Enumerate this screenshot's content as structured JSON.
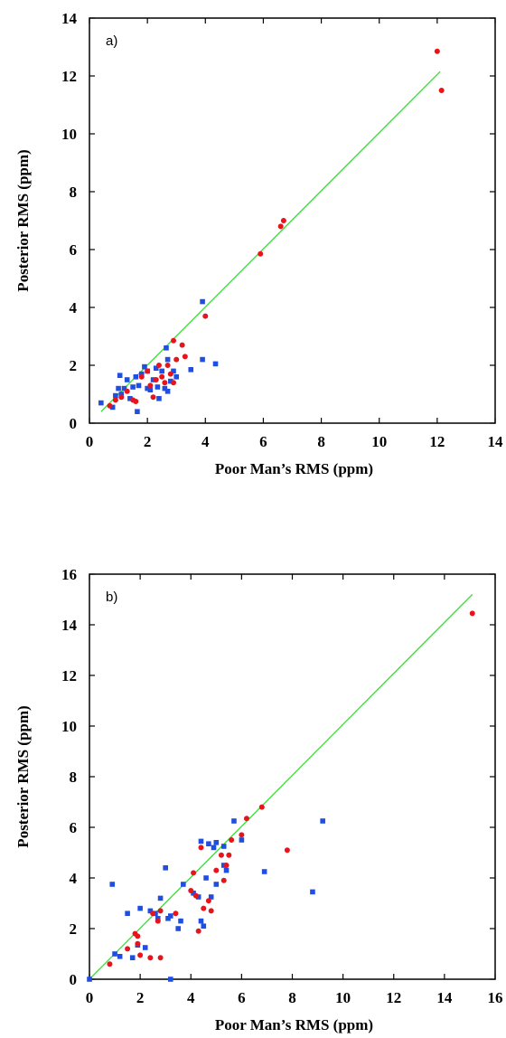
{
  "chart_data": [
    {
      "type": "scatter",
      "panel_label": "a)",
      "xlabel": "Poor Man’s RMS (ppm)",
      "ylabel": "Posterior RMS (ppm)",
      "xlim": [
        0,
        14
      ],
      "ylim": [
        0,
        14
      ],
      "xticks": [
        0,
        2,
        4,
        6,
        8,
        10,
        12,
        14
      ],
      "yticks": [
        0,
        2,
        4,
        6,
        8,
        10,
        12,
        14
      ],
      "grid": false,
      "colors": {
        "red": "#e8141b",
        "blue": "#1f4fe0",
        "line": "#33e033"
      },
      "fit_line": {
        "x": [
          0.4,
          12.1
        ],
        "y": [
          0.4,
          12.15
        ]
      },
      "series": [
        {
          "marker": "circle",
          "color": "#e8141b",
          "points": [
            [
              0.7,
              0.6
            ],
            [
              0.9,
              0.8
            ],
            [
              1.1,
              0.9
            ],
            [
              1.3,
              1.1
            ],
            [
              1.5,
              0.8
            ],
            [
              1.6,
              0.75
            ],
            [
              1.8,
              1.6
            ],
            [
              2.0,
              1.8
            ],
            [
              2.1,
              1.3
            ],
            [
              2.2,
              0.9
            ],
            [
              2.3,
              1.5
            ],
            [
              2.4,
              2.0
            ],
            [
              2.5,
              1.6
            ],
            [
              2.6,
              1.4
            ],
            [
              2.7,
              2.0
            ],
            [
              2.8,
              1.7
            ],
            [
              2.9,
              2.85
            ],
            [
              2.9,
              1.4
            ],
            [
              3.0,
              2.2
            ],
            [
              3.2,
              2.7
            ],
            [
              3.3,
              2.3
            ],
            [
              4.0,
              3.7
            ],
            [
              5.9,
              5.85
            ],
            [
              6.6,
              6.8
            ],
            [
              6.7,
              7.0
            ],
            [
              12.0,
              12.85
            ],
            [
              12.15,
              11.5
            ]
          ]
        },
        {
          "marker": "square",
          "color": "#1f4fe0",
          "points": [
            [
              0.4,
              0.7
            ],
            [
              0.8,
              0.55
            ],
            [
              0.9,
              0.95
            ],
            [
              1.0,
              1.2
            ],
            [
              1.05,
              1.65
            ],
            [
              1.1,
              1.0
            ],
            [
              1.2,
              1.2
            ],
            [
              1.3,
              1.5
            ],
            [
              1.4,
              0.85
            ],
            [
              1.5,
              1.25
            ],
            [
              1.6,
              1.6
            ],
            [
              1.65,
              0.4
            ],
            [
              1.7,
              1.3
            ],
            [
              1.8,
              1.7
            ],
            [
              1.9,
              1.95
            ],
            [
              2.0,
              1.2
            ],
            [
              2.0,
              1.8
            ],
            [
              2.1,
              1.15
            ],
            [
              2.2,
              1.5
            ],
            [
              2.3,
              1.9
            ],
            [
              2.35,
              1.25
            ],
            [
              2.4,
              0.85
            ],
            [
              2.5,
              1.8
            ],
            [
              2.6,
              1.2
            ],
            [
              2.65,
              2.6
            ],
            [
              2.7,
              2.2
            ],
            [
              2.7,
              1.1
            ],
            [
              2.8,
              1.45
            ],
            [
              2.9,
              1.8
            ],
            [
              3.0,
              1.6
            ],
            [
              3.5,
              1.85
            ],
            [
              3.9,
              4.2
            ],
            [
              3.9,
              2.2
            ],
            [
              4.35,
              2.05
            ]
          ]
        }
      ]
    },
    {
      "type": "scatter",
      "panel_label": "b)",
      "xlabel": "Poor Man’s RMS (ppm)",
      "ylabel": "Posterior RMS (ppm)",
      "xlim": [
        0,
        16
      ],
      "ylim": [
        0,
        16
      ],
      "xticks": [
        0,
        2,
        4,
        6,
        8,
        10,
        12,
        14,
        16
      ],
      "yticks": [
        0,
        2,
        4,
        6,
        8,
        10,
        12,
        14,
        16
      ],
      "grid": false,
      "colors": {
        "red": "#e8141b",
        "blue": "#1f4fe0",
        "line": "#33e033"
      },
      "fit_line": {
        "x": [
          0,
          15.1
        ],
        "y": [
          0,
          15.2
        ]
      },
      "series": [
        {
          "marker": "circle",
          "color": "#e8141b",
          "points": [
            [
              0.8,
              0.6
            ],
            [
              1.5,
              1.2
            ],
            [
              1.8,
              1.8
            ],
            [
              1.9,
              1.7
            ],
            [
              1.9,
              1.4
            ],
            [
              2.0,
              0.95
            ],
            [
              2.4,
              0.85
            ],
            [
              2.5,
              2.6
            ],
            [
              2.7,
              2.3
            ],
            [
              2.8,
              2.7
            ],
            [
              2.8,
              0.85
            ],
            [
              3.4,
              2.6
            ],
            [
              4.0,
              3.5
            ],
            [
              4.1,
              4.2
            ],
            [
              4.2,
              3.3
            ],
            [
              4.3,
              1.9
            ],
            [
              4.4,
              5.2
            ],
            [
              4.5,
              2.8
            ],
            [
              4.7,
              3.1
            ],
            [
              4.8,
              2.7
            ],
            [
              5.0,
              4.3
            ],
            [
              5.2,
              4.9
            ],
            [
              5.3,
              3.9
            ],
            [
              5.4,
              4.5
            ],
            [
              5.5,
              4.9
            ],
            [
              5.6,
              5.5
            ],
            [
              6.0,
              5.7
            ],
            [
              6.2,
              6.35
            ],
            [
              6.8,
              6.8
            ],
            [
              7.8,
              5.1
            ],
            [
              15.1,
              14.45
            ]
          ]
        },
        {
          "marker": "square",
          "color": "#1f4fe0",
          "points": [
            [
              0.0,
              0.0
            ],
            [
              0.9,
              3.75
            ],
            [
              1.0,
              1.0
            ],
            [
              1.2,
              0.9
            ],
            [
              1.5,
              2.6
            ],
            [
              1.7,
              0.85
            ],
            [
              1.9,
              1.35
            ],
            [
              2.0,
              2.8
            ],
            [
              2.2,
              1.25
            ],
            [
              2.4,
              2.7
            ],
            [
              2.6,
              2.6
            ],
            [
              2.7,
              2.4
            ],
            [
              2.8,
              3.2
            ],
            [
              3.0,
              4.4
            ],
            [
              3.1,
              2.4
            ],
            [
              3.2,
              0.0
            ],
            [
              3.2,
              2.5
            ],
            [
              3.5,
              2.0
            ],
            [
              3.6,
              2.3
            ],
            [
              3.7,
              3.75
            ],
            [
              4.1,
              3.4
            ],
            [
              4.3,
              3.25
            ],
            [
              4.4,
              5.45
            ],
            [
              4.4,
              2.3
            ],
            [
              4.5,
              2.1
            ],
            [
              4.6,
              4.0
            ],
            [
              4.7,
              5.35
            ],
            [
              4.8,
              3.25
            ],
            [
              4.9,
              5.2
            ],
            [
              5.0,
              5.4
            ],
            [
              5.0,
              3.75
            ],
            [
              5.3,
              5.25
            ],
            [
              5.3,
              4.5
            ],
            [
              5.4,
              4.3
            ],
            [
              5.7,
              6.25
            ],
            [
              6.0,
              5.5
            ],
            [
              6.9,
              4.25
            ],
            [
              8.8,
              3.45
            ],
            [
              9.2,
              6.25
            ]
          ]
        }
      ]
    }
  ]
}
